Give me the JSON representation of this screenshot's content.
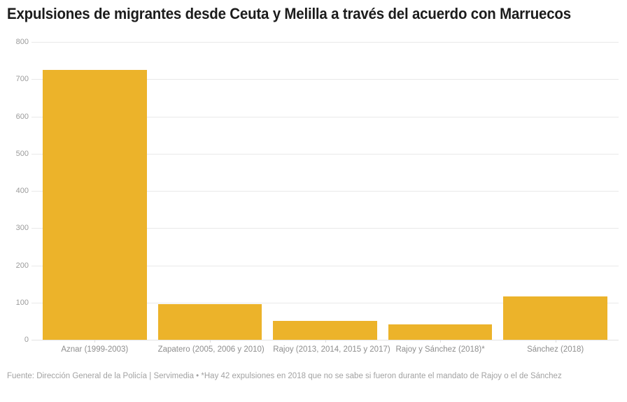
{
  "chart_data": {
    "type": "bar",
    "title": "Expulsiones de migrantes desde Ceuta y Melilla a través del acuerdo con Marruecos",
    "categories": [
      "Aznar (1999-2003)",
      "Zapatero (2005, 2006 y 2010)",
      "Rajoy (2013, 2014, 2015 y 2017)",
      "Rajoy y Sánchez (2018)*",
      "Sánchez (2018)"
    ],
    "values": [
      725,
      95,
      51,
      42,
      116
    ],
    "xlabel": "",
    "ylabel": "",
    "ylim": [
      0,
      800
    ],
    "yticks": [
      0,
      100,
      200,
      300,
      400,
      500,
      600,
      700,
      800
    ],
    "grid": true,
    "legend": "none"
  },
  "footer": {
    "source_note": "Fuente: Dirección General de la Policía | Servimedia • *Hay 42 expulsiones en 2018 que no se sabe si fueron durante el mandato de Rajoy o el de Sánchez"
  },
  "colors": {
    "background": "#FFFFFF",
    "bar": "#ECB32A",
    "gridline": "#E9E9E9",
    "baseline": "#E3E3E3",
    "x_tick": "#DCDCDC",
    "title_text": "#1C1C1C",
    "y_axis_label": "#9B9B9B",
    "category_label": "#8E8E8E",
    "footer_text": "#A2A2A2"
  }
}
